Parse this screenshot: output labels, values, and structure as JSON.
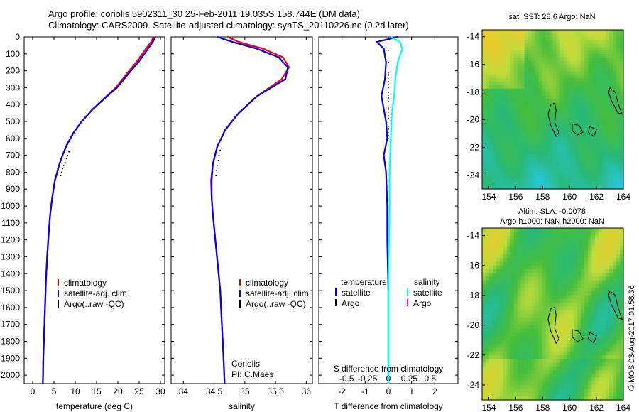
{
  "header": {
    "line1": "Argo profile: coriolis 5902311_30 25-Feb-2011 19.035S 158.744E (DM data)",
    "line2": "Climatology: CARS2009. Satellite-adjusted climatology: synTS_20110226.nc (0.2d later)"
  },
  "map_sst_title": "sat. SST: 28.6 Argo: NaN",
  "map_sla_title1": "Altim. SLA: -0.0078",
  "map_sla_title2": "Argo h1000: NaN h2000: NaN",
  "credit": "©IMOS 03-Aug-2017 01:58:36",
  "colors": {
    "climatology": "#ff0000",
    "satellite": "#0000ff",
    "argo": "#000000",
    "sal_satellite": "#00ffff",
    "sal_argo": "#ff00ff"
  },
  "chart_data": [
    {
      "type": "line",
      "xlabel": "temperature (deg C)",
      "ylabel": "",
      "xlim": [
        -2,
        31
      ],
      "ylim": [
        2050,
        0
      ],
      "y_reversed": true,
      "xticks": [
        0,
        5,
        10,
        15,
        20,
        25,
        30
      ],
      "yticks": [
        0,
        100,
        200,
        300,
        400,
        500,
        600,
        700,
        800,
        900,
        1000,
        1100,
        1200,
        1300,
        1400,
        1500,
        1600,
        1700,
        1800,
        1900,
        2000
      ],
      "legend": [
        "climatology",
        "satellite-adj. clim.",
        "Argo(..raw -QC)"
      ],
      "series": [
        {
          "name": "climatology",
          "color": "#ff0000",
          "x": [
            28.4,
            27.8,
            26.3,
            24.3,
            22.0,
            19.5,
            16.5,
            14.0,
            11.5,
            9.5,
            8.0,
            7.0,
            6.3,
            5.2,
            4.6,
            4.1,
            3.8,
            3.4,
            3.1,
            2.9,
            2.7,
            2.5,
            2.4
          ],
          "y": [
            0,
            30,
            80,
            150,
            220,
            300,
            370,
            430,
            500,
            570,
            640,
            700,
            750,
            850,
            950,
            1050,
            1150,
            1300,
            1450,
            1600,
            1750,
            1900,
            2050
          ]
        },
        {
          "name": "satellite-adj. clim.",
          "color": "#0000ff",
          "x": [
            28.8,
            28.2,
            26.8,
            24.8,
            22.4,
            19.8,
            16.6,
            14.0,
            11.5,
            9.5,
            8.0,
            7.0,
            6.3,
            5.2,
            4.6,
            4.1,
            3.8,
            3.4,
            3.1,
            2.9,
            2.7,
            2.5,
            2.4
          ],
          "y": [
            0,
            30,
            80,
            150,
            220,
            300,
            370,
            430,
            500,
            570,
            640,
            700,
            750,
            850,
            950,
            1050,
            1150,
            1300,
            1450,
            1600,
            1750,
            1900,
            2050
          ]
        },
        {
          "name": "Argo(..raw -QC)",
          "color": "#000000",
          "marker": "dot",
          "x": [
            8.5,
            8.2,
            7.9,
            7.6,
            7.3,
            7.0,
            6.8,
            6.6
          ],
          "y": [
            680,
            700,
            720,
            740,
            760,
            780,
            800,
            820
          ]
        }
      ]
    },
    {
      "type": "line",
      "xlabel": "salinity",
      "xlim": [
        33.8,
        36.1
      ],
      "ylim": [
        2050,
        0
      ],
      "y_reversed": true,
      "xticks": [
        34,
        34.5,
        35,
        35.5,
        36
      ],
      "legend": [
        "climatology",
        "satellite-adj. clim.",
        "Argo(..raw -QC)"
      ],
      "annotation": [
        "Coriolis",
        "PI: C.Maes"
      ],
      "series": [
        {
          "name": "climatology",
          "color": "#ff0000",
          "x": [
            34.72,
            34.9,
            35.3,
            35.62,
            35.72,
            35.6,
            35.2,
            34.9,
            34.68,
            34.55,
            34.48,
            34.45,
            34.46,
            34.48,
            34.52,
            34.56,
            34.6,
            34.62,
            34.64,
            34.66,
            34.67
          ],
          "y": [
            0,
            30,
            70,
            120,
            180,
            250,
            350,
            450,
            550,
            650,
            750,
            850,
            950,
            1050,
            1200,
            1350,
            1500,
            1650,
            1800,
            1950,
            2050
          ]
        },
        {
          "name": "satellite-adj. clim.",
          "color": "#0000ff",
          "x": [
            34.55,
            34.8,
            35.2,
            35.55,
            35.7,
            35.66,
            35.2,
            34.9,
            34.68,
            34.55,
            34.48,
            34.46,
            34.46,
            34.48,
            34.52,
            34.56,
            34.6,
            34.62,
            34.64,
            34.66,
            34.67
          ],
          "y": [
            0,
            30,
            70,
            120,
            180,
            250,
            350,
            450,
            550,
            650,
            750,
            850,
            950,
            1050,
            1200,
            1350,
            1500,
            1650,
            1800,
            1950,
            2050
          ]
        },
        {
          "name": "Argo(..raw -QC)",
          "color": "#000000",
          "marker": "dot",
          "x": [
            34.6,
            34.58,
            34.57,
            34.55,
            34.54,
            34.53
          ],
          "y": [
            670,
            700,
            730,
            760,
            790,
            820
          ]
        }
      ]
    },
    {
      "type": "line",
      "xlabel": "T difference from climatology",
      "xlabel_top": "S difference from climatology",
      "xlim": [
        -3,
        3
      ],
      "ylim": [
        2050,
        0
      ],
      "y_reversed": true,
      "xticks": [
        -2,
        -1,
        0,
        1,
        2
      ],
      "xticks_s": [
        {
          "label": "-0.5",
          "at": -1.8
        },
        {
          "label": "-0.25",
          "at": -0.9
        },
        {
          "label": "0",
          "at": 0
        },
        {
          "label": "0.25",
          "at": 0.9
        },
        {
          "label": "0.5",
          "at": 1.8
        }
      ],
      "legend_temperature": {
        "heading": "temperature",
        "items": [
          "satellite",
          "Argo"
        ]
      },
      "legend_salinity": {
        "heading": "salinity",
        "items": [
          "satellite",
          "Argo"
        ]
      },
      "series": [
        {
          "name": "satellite",
          "color": "#0000ff",
          "x": [
            0.4,
            -0.5,
            -0.2,
            -0.1,
            -0.15,
            -0.3,
            -0.1,
            -0.05,
            -0.2,
            -0.1,
            -0.05,
            -0.05,
            0,
            0,
            0
          ],
          "y": [
            0,
            30,
            70,
            150,
            250,
            350,
            500,
            600,
            700,
            800,
            1000,
            1200,
            1500,
            1800,
            2050
          ]
        },
        {
          "name": "satellite",
          "color": "#00ffff",
          "x": [
            0.1,
            0.5,
            0.6,
            0.4,
            0.3,
            0.25,
            0.15,
            0.1,
            0.05,
            0.05,
            0.02,
            0,
            0,
            0
          ],
          "y": [
            0,
            30,
            70,
            150,
            250,
            350,
            450,
            600,
            800,
            1000,
            1200,
            1500,
            1800,
            2050
          ]
        },
        {
          "name": "Argo",
          "color": "#000000",
          "marker": "dot",
          "x": [
            0.0,
            0.0,
            0.0,
            0.0,
            0.0,
            0.0,
            0.0,
            0.0
          ],
          "y": [
            80,
            150,
            220,
            300,
            360,
            420,
            480,
            540
          ]
        }
      ]
    },
    {
      "type": "heatmap",
      "title": "sat. SST: 28.6 Argo: NaN",
      "xlim": [
        153.5,
        164
      ],
      "ylim": [
        -25,
        -13.5
      ],
      "xticks": [
        154,
        156,
        158,
        160,
        162,
        164
      ],
      "yticks": [
        -14,
        -16,
        -18,
        -20,
        -22,
        -24
      ]
    },
    {
      "type": "heatmap",
      "title": "Altim. SLA: -0.0078 / Argo h1000: NaN h2000: NaN",
      "xlim": [
        153.5,
        164
      ],
      "ylim": [
        -25,
        -13.5
      ],
      "xticks": [
        154,
        156,
        158,
        160,
        162,
        164
      ],
      "yticks": [
        -14,
        -16,
        -18,
        -20,
        -22,
        -24
      ]
    }
  ]
}
